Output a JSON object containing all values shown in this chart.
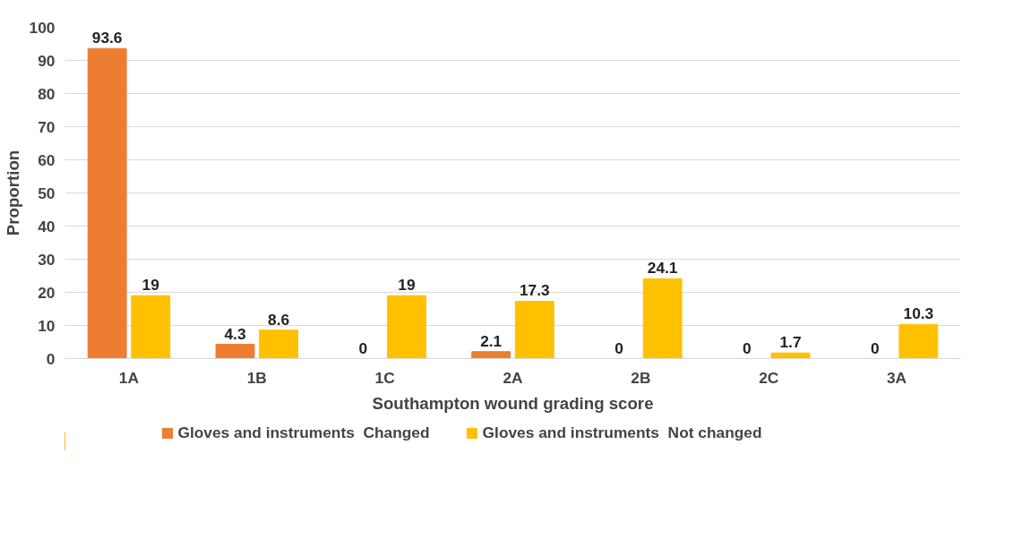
{
  "chart_data": {
    "type": "bar",
    "xlabel": "Southampton wound grading score",
    "ylabel": "Proportion",
    "categories": [
      "1A",
      "1B",
      "1C",
      "2A",
      "2B",
      "2C",
      "3A"
    ],
    "series": [
      {
        "name": "Gloves and instruments  Changed",
        "color": "#ed7d31",
        "values": [
          93.6,
          4.3,
          0,
          2.1,
          0,
          0,
          0
        ]
      },
      {
        "name": "Gloves and instruments  Not changed",
        "color": "#ffc000",
        "values": [
          19,
          8.6,
          19,
          17.3,
          24.1,
          1.7,
          10.3
        ]
      }
    ],
    "ylim": [
      0,
      100
    ],
    "yticks": [
      0,
      10,
      20,
      30,
      40,
      50,
      60,
      70,
      80,
      90,
      100
    ],
    "grid": "y",
    "legend": "bottom",
    "data_labels": true
  }
}
